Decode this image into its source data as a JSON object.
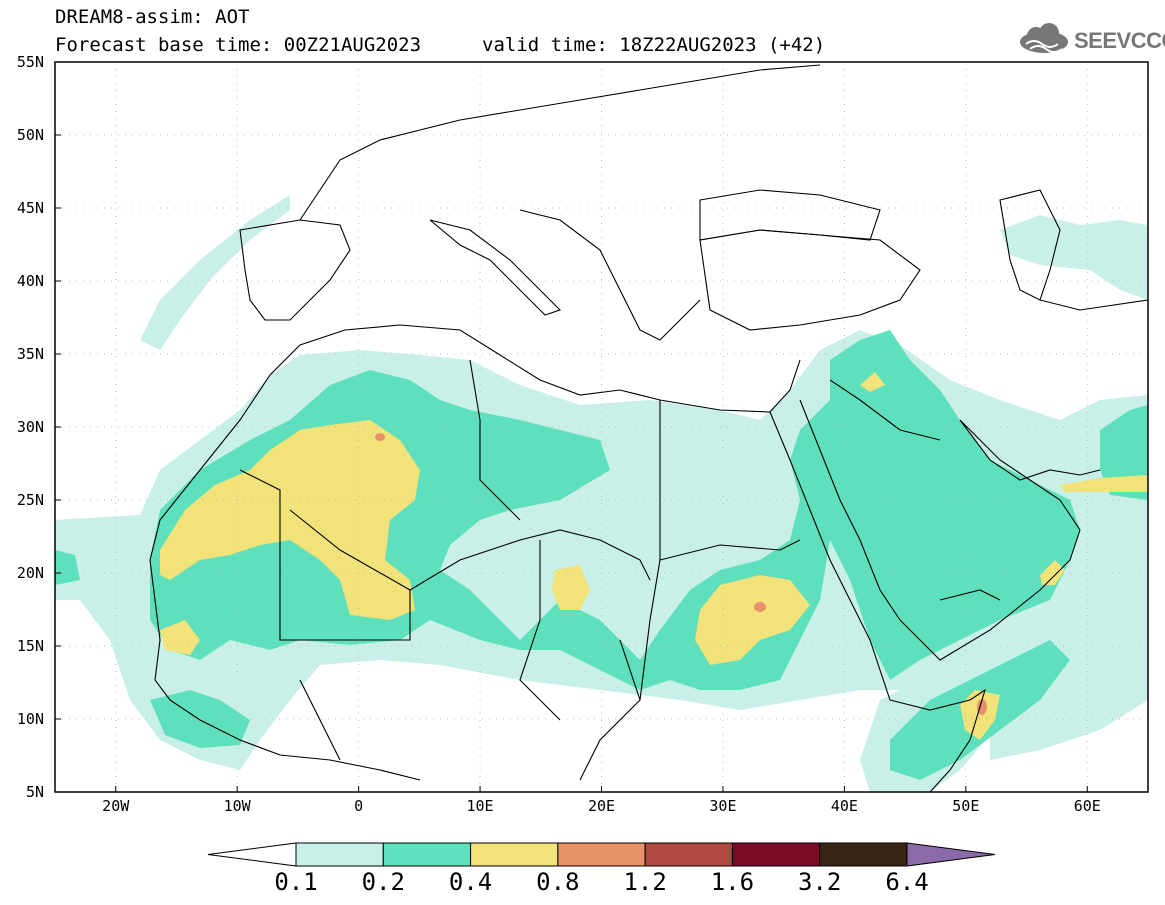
{
  "title_line1": "DREAM8-assim: AOT",
  "title_line2": "Forecast base time: 00Z21AUG2023",
  "valid_time": "valid time: 18Z22AUG2023 (+42)",
  "logo_text": "SEEVCCC",
  "logo_icon": "cloud-icon",
  "map": {
    "region": "North Africa, Middle East, Europe",
    "lon_range": [
      -25,
      65
    ],
    "lat_range": [
      5,
      55
    ],
    "lat_labels": [
      "55N",
      "50N",
      "45N",
      "40N",
      "35N",
      "30N",
      "25N",
      "20N",
      "15N",
      "10N",
      "5N"
    ],
    "lon_labels": [
      "20W",
      "10W",
      "0",
      "10E",
      "20E",
      "30E",
      "40E",
      "50E",
      "60E"
    ],
    "grid": "dotted"
  },
  "colorbar": {
    "labels": [
      "0.1",
      "0.2",
      "0.4",
      "0.8",
      "1.2",
      "1.6",
      "3.2",
      "6.4"
    ],
    "colors": [
      "#ffffff",
      "#c8f0e8",
      "#5ee0bd",
      "#f2e27a",
      "#e8926a",
      "#b04a40",
      "#7a0a26",
      "#3a2414",
      "#8a6aa8"
    ]
  }
}
